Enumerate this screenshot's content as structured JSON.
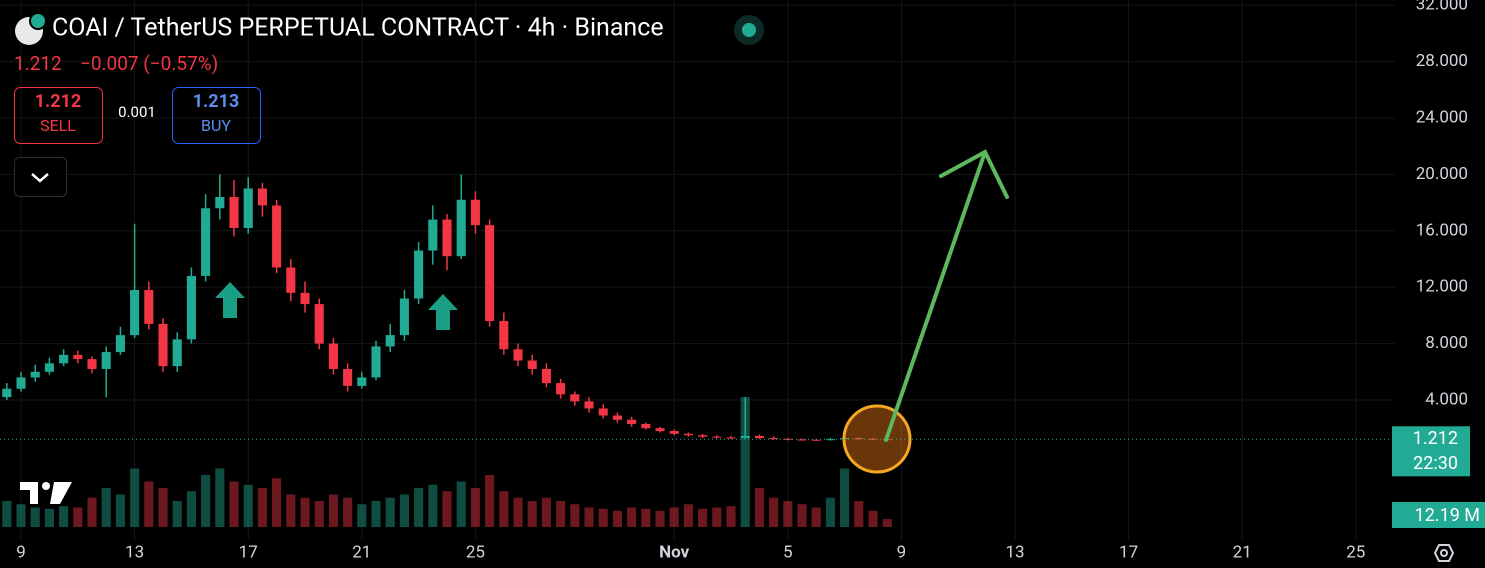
{
  "chart_data": {
    "type": "candlestick",
    "title": "COAI / TetherUS PERPETUAL CONTRACT · 4h · Binance",
    "last_price": "1.212",
    "change": "−0.007 (−0.57%)",
    "sell_price": "1.212",
    "sell_label": "SELL",
    "spread": "0.001",
    "buy_price": "1.213",
    "buy_label": "BUY",
    "countdown": "22:30",
    "last_volume_label": "12.19 M",
    "up_color": "#22ab94",
    "down_color": "#f23645",
    "grid": true,
    "xlim": [
      -0.74,
      48.38
    ],
    "xticks": [
      {
        "value": 0,
        "label": "9"
      },
      {
        "value": 4,
        "label": "13"
      },
      {
        "value": 8,
        "label": "17"
      },
      {
        "value": 12,
        "label": "21"
      },
      {
        "value": 16,
        "label": "25"
      },
      {
        "value": 23,
        "label": "Nov"
      },
      {
        "value": 27,
        "label": "5"
      },
      {
        "value": 31,
        "label": "9"
      },
      {
        "value": 35,
        "label": "13"
      },
      {
        "value": 39,
        "label": "17"
      },
      {
        "value": 43,
        "label": "21"
      },
      {
        "value": 47,
        "label": "25"
      }
    ],
    "ylim": [
      -5.93,
      32.37
    ],
    "yticks": [
      {
        "value": 4,
        "label": "4.000"
      },
      {
        "value": 8,
        "label": "8.000"
      },
      {
        "value": 12,
        "label": "12.000"
      },
      {
        "value": 16,
        "label": "16.000"
      },
      {
        "value": 20,
        "label": "20.000"
      },
      {
        "value": 24,
        "label": "24.000"
      },
      {
        "value": 28,
        "label": "28.000"
      },
      {
        "value": 32,
        "label": "32.000"
      }
    ],
    "volume_lim": [
      0,
      200
    ],
    "x": [
      -0.5,
      0,
      0.5,
      1,
      1.5,
      2,
      2.5,
      3,
      3.5,
      4,
      4.5,
      5,
      5.5,
      6,
      6.5,
      7,
      7.5,
      8,
      8.5,
      9,
      9.5,
      10,
      10.5,
      11,
      11.5,
      12,
      12.5,
      13,
      13.5,
      14,
      14.5,
      15,
      15.5,
      16,
      16.5,
      17,
      17.5,
      18,
      18.5,
      19,
      19.5,
      20,
      20.5,
      21,
      21.5,
      22,
      22.5,
      23,
      23.5,
      24,
      24.5,
      25,
      25.5,
      26,
      26.5,
      27,
      27.5,
      28,
      28.5,
      29,
      29.5,
      30,
      30.5
    ],
    "open": [
      4.2,
      4.8,
      5.6,
      6.0,
      6.6,
      7.2,
      6.9,
      6.2,
      7.4,
      8.6,
      11.8,
      9.4,
      6.4,
      8.3,
      12.8,
      17.6,
      18.4,
      16.2,
      19.0,
      17.8,
      13.4,
      11.6,
      10.8,
      8.0,
      6.2,
      5.0,
      5.6,
      7.8,
      8.6,
      11.2,
      14.6,
      16.8,
      14.2,
      18.2,
      16.4,
      9.6,
      7.6,
      6.8,
      6.2,
      5.2,
      4.4,
      3.9,
      3.4,
      2.9,
      2.6,
      2.3,
      2.0,
      1.8,
      1.6,
      1.5,
      1.4,
      1.35,
      1.3,
      1.45,
      1.3,
      1.25,
      1.2,
      1.18,
      1.15,
      1.22,
      1.3,
      1.25,
      1.22
    ],
    "high": [
      5.2,
      6.0,
      6.5,
      7.0,
      7.6,
      7.5,
      7.1,
      7.8,
      9.2,
      16.5,
      12.4,
      9.8,
      8.8,
      13.4,
      18.6,
      20.0,
      19.6,
      19.8,
      19.4,
      18.2,
      14.0,
      12.4,
      11.2,
      8.4,
      6.6,
      6.0,
      8.2,
      9.4,
      11.8,
      15.2,
      17.8,
      17.2,
      20.0,
      18.8,
      16.8,
      10.2,
      8.0,
      7.2,
      6.6,
      5.5,
      4.6,
      4.2,
      3.7,
      3.1,
      2.8,
      2.4,
      2.1,
      1.9,
      1.7,
      1.6,
      1.5,
      1.45,
      4.2,
      1.55,
      1.4,
      1.3,
      1.26,
      1.22,
      1.3,
      1.38,
      1.34,
      1.3,
      1.26
    ],
    "low": [
      4.0,
      4.6,
      5.3,
      5.8,
      6.4,
      6.6,
      5.9,
      4.2,
      7.2,
      8.4,
      9.0,
      6.0,
      6.0,
      8.0,
      12.4,
      16.8,
      15.6,
      15.8,
      17.0,
      13.0,
      11.0,
      10.2,
      7.6,
      5.8,
      4.6,
      4.8,
      5.4,
      7.4,
      8.2,
      10.8,
      13.6,
      13.2,
      14.0,
      15.8,
      9.2,
      7.2,
      6.4,
      5.8,
      4.9,
      4.1,
      3.6,
      3.1,
      2.7,
      2.4,
      2.1,
      1.9,
      1.7,
      1.5,
      1.4,
      1.3,
      1.28,
      1.22,
      1.25,
      1.22,
      1.18,
      1.14,
      1.12,
      1.1,
      1.12,
      1.18,
      1.2,
      1.18,
      1.18
    ],
    "close": [
      4.8,
      5.6,
      6.0,
      6.6,
      7.2,
      6.9,
      6.2,
      7.4,
      8.6,
      11.8,
      9.4,
      6.4,
      8.3,
      12.8,
      17.6,
      18.4,
      16.2,
      19.0,
      17.8,
      13.4,
      11.6,
      10.8,
      8.0,
      6.2,
      5.0,
      5.6,
      7.8,
      8.6,
      11.2,
      14.6,
      16.8,
      14.2,
      18.2,
      16.4,
      9.6,
      7.6,
      6.8,
      6.2,
      5.2,
      4.4,
      3.9,
      3.4,
      2.9,
      2.6,
      2.3,
      2.0,
      1.8,
      1.6,
      1.5,
      1.4,
      1.35,
      1.3,
      1.45,
      1.3,
      1.25,
      1.2,
      1.18,
      1.15,
      1.22,
      1.3,
      1.25,
      1.22,
      1.212
    ],
    "volume": [
      40,
      35,
      30,
      28,
      32,
      30,
      45,
      60,
      50,
      90,
      70,
      60,
      40,
      55,
      80,
      90,
      70,
      65,
      60,
      75,
      50,
      45,
      40,
      50,
      45,
      35,
      40,
      45,
      50,
      60,
      65,
      55,
      70,
      60,
      80,
      55,
      45,
      40,
      45,
      40,
      35,
      30,
      28,
      25,
      30,
      28,
      25,
      30,
      35,
      28,
      30,
      32,
      200,
      60,
      45,
      40,
      35,
      30,
      45,
      90,
      40,
      25,
      12.19
    ]
  }
}
